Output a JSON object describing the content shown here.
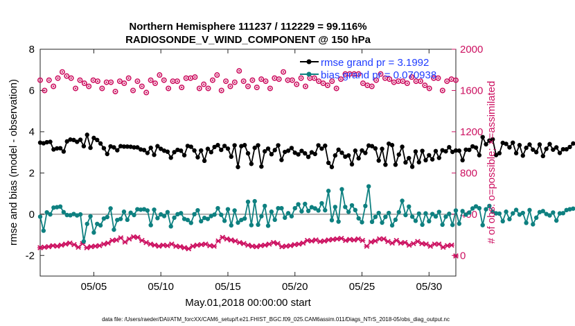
{
  "chart_data": {
    "type": "line",
    "title_line1": "Northern Hemisphere 111237 / 112229 = 99.116%",
    "title_line2": "RADIOSONDE_V_WIND_COMPONENT @ 150 hPa",
    "xlabel": "May.01,2018 00:00:00 start",
    "ylabel_left": "rmse and bias (model - observation)",
    "ylabel_right": "# of obs: o=possible; ×=assimilated",
    "ylim_left": [
      -3,
      8
    ],
    "ylim_right": [
      -200,
      2000
    ],
    "xlim_days": [
      1,
      32
    ],
    "yticks_left": [
      -2,
      0,
      2,
      4,
      6,
      8
    ],
    "yticks_right": [
      0,
      400,
      800,
      1200,
      1600,
      2000
    ],
    "xticks": [
      {
        "day": 5,
        "label": "05/05"
      },
      {
        "day": 10,
        "label": "05/10"
      },
      {
        "day": 15,
        "label": "05/15"
      },
      {
        "day": 20,
        "label": "05/20"
      },
      {
        "day": 25,
        "label": "05/25"
      },
      {
        "day": 30,
        "label": "05/30"
      }
    ],
    "zero_line": 0,
    "colors": {
      "rmse": "#000000",
      "bias": "#0e8080",
      "obs": "#cc1060",
      "zero_line": "#b0b0b0",
      "legend_text": "#1f3cff"
    },
    "legend": [
      {
        "name": "rmse",
        "label": "rmse grand pr = 3.1992"
      },
      {
        "name": "bias",
        "label": "bias grand pr = 0.070938"
      }
    ],
    "start_day": 1.0,
    "step_days": 0.25,
    "series": [
      {
        "name": "rmse",
        "axis": "left",
        "values": [
          3.47,
          3.44,
          3.49,
          3.51,
          3.14,
          3.19,
          3.2,
          3.04,
          3.53,
          3.62,
          3.6,
          3.51,
          3.61,
          3.3,
          3.85,
          3.22,
          3.7,
          3.6,
          3.43,
          3.2,
          2.92,
          3.29,
          3.24,
          3.1,
          3.3,
          3.28,
          3.28,
          3.27,
          3.24,
          3.24,
          3.14,
          3.11,
          2.97,
          3.22,
          2.88,
          3.3,
          3.17,
          3.08,
          3.03,
          2.74,
          3.01,
          3.12,
          3.08,
          2.86,
          3.31,
          3.27,
          3.09,
          2.76,
          3.09,
          2.59,
          3.17,
          3.01,
          3.26,
          3.35,
          3.12,
          3.31,
          3.18,
          2.79,
          3.34,
          2.29,
          3.3,
          3.35,
          2.95,
          2.44,
          3.22,
          3.34,
          2.31,
          3.05,
          3.18,
          2.91,
          3.11,
          3.34,
          2.63,
          3.02,
          3.08,
          3.21,
          2.98,
          2.9,
          3.07,
          2.95,
          2.78,
          3.0,
          2.92,
          3.34,
          3.18,
          3.32,
          2.49,
          2.29,
          2.85,
          3.13,
          2.98,
          2.79,
          2.85,
          2.42,
          3.08,
          2.71,
          3.09,
          2.97,
          3.33,
          3.3,
          3.19,
          2.6,
          3.17,
          2.4,
          3.42,
          3.35,
          2.4,
          2.89,
          3.27,
          2.51,
          2.72,
          2.3,
          3.04,
          2.52,
          3.07,
          2.62,
          2.86,
          2.66,
          3.06,
          2.73,
          3.1,
          3.05,
          3.25,
          3.02,
          3.09,
          3.08,
          2.62,
          3.13,
          3.12,
          3.29,
          3.23,
          2.86,
          3.74,
          3.39,
          3.57,
          3.63,
          2.87,
          2.96,
          3.46,
          3.41,
          3.24,
          3.47,
          2.96,
          3.35,
          2.84,
          3.22,
          3.38,
          3.13,
          3.01,
          3.38,
          2.82,
          3.17,
          3.4,
          3.13,
          3.24,
          2.97,
          3.15,
          3.15,
          3.26,
          3.43
        ]
      },
      {
        "name": "bias",
        "axis": "left",
        "values": [
          -0.12,
          -0.8,
          0.09,
          -0.01,
          0.32,
          0.34,
          0.37,
          0.1,
          -0.04,
          -0.05,
          0.01,
          -0.06,
          -0.01,
          -1.32,
          -0.47,
          -0.1,
          -0.89,
          -0.47,
          -0.54,
          -0.21,
          -0.14,
          0.28,
          -0.75,
          -0.28,
          -0.23,
          0.12,
          -0.27,
          0.07,
          -0.04,
          0.24,
          0.22,
          0.24,
          0.18,
          -0.53,
          0.22,
          -0.19,
          -0.01,
          -0.09,
          0.1,
          -0.59,
          -0.17,
          0.0,
          0.05,
          -0.23,
          -0.28,
          -0.42,
          0.0,
          0.19,
          -0.34,
          -0.18,
          -0.23,
          -0.09,
          -0.02,
          0.29,
          -0.03,
          -0.32,
          0.24,
          -0.54,
          0.18,
          -0.41,
          -0.28,
          -0.21,
          0.6,
          -0.53,
          0.63,
          -0.51,
          -0.1,
          0.4,
          -0.56,
          0.12,
          -0.27,
          0.29,
          0.29,
          -0.17,
          0.05,
          -0.1,
          0.29,
          0.48,
          0.14,
          0.5,
          0.16,
          0.34,
          0.28,
          0.18,
          0.53,
          0.19,
          1.13,
          -0.29,
          0.35,
          -0.36,
          1.21,
          0.35,
          0.11,
          0.43,
          0.2,
          -0.2,
          -0.39,
          0.4,
          1.35,
          -0.37,
          -0.13,
          0.06,
          -0.41,
          -0.13,
          0.06,
          -0.54,
          -0.27,
          0.1,
          0.65,
          -0.04,
          0.37,
          -0.12,
          -0.32,
          0.03,
          -0.51,
          0.04,
          -0.34,
          0.01,
          -0.11,
          0.11,
          -0.51,
          -0.12,
          0.02,
          -0.52,
          0.18,
          -0.46,
          0.15,
          -0.02,
          0.08,
          0.28,
          0.38,
          0.29,
          -0.53,
          0.24,
          0.4,
          0.12,
          0.04,
          0.03,
          -0.34,
          0.12,
          -0.24,
          0.04,
          0.21,
          -0.02,
          0.06,
          -0.42,
          0.2,
          -0.49,
          -0.17,
          0.1,
          0.15,
          0.01,
          -0.06,
          0.08,
          -0.31,
          0.04,
          0.05,
          0.2,
          0.24,
          0.27
        ]
      },
      {
        "name": "obs_possible",
        "axis": "right",
        "marker": "circle",
        "values": [
          1700,
          1600,
          1700,
          1640,
          1720,
          1780,
          1740,
          1720,
          1620,
          1700,
          1670,
          1640,
          1700,
          1690,
          1620,
          1680,
          1680,
          1590,
          1690,
          1670,
          1720,
          1600,
          1690,
          1640,
          1580,
          1700,
          1670,
          1750,
          1700,
          1620,
          1690,
          1690,
          1630,
          1720,
          1720,
          1730,
          1620,
          1660,
          1620,
          1700,
          1750,
          1600,
          1690,
          1640,
          1680,
          1790,
          1690,
          1640,
          1700,
          1630,
          1710,
          1690,
          1620,
          1720,
          1710,
          1780,
          1700,
          1700,
          1660,
          1720,
          1640,
          1720,
          1720,
          1690,
          1670,
          1650,
          1690,
          1620,
          1710,
          1760,
          1760,
          1760,
          1760,
          1670,
          1650,
          1640,
          1700,
          1760,
          1720,
          1710,
          1680,
          1690,
          1690,
          1670,
          1730,
          1690,
          1690,
          1650,
          1620,
          1720,
          1720,
          1600,
          1690,
          1710,
          1700
        ]
      },
      {
        "name": "obs_assimilated",
        "axis": "right",
        "marker": "x",
        "values": [
          75,
          80,
          85,
          95,
          90,
          100,
          110,
          120,
          105,
          80,
          115,
          75,
          85,
          90,
          95,
          110,
          120,
          145,
          150,
          170,
          130,
          160,
          180,
          175,
          145,
          125,
          110,
          100,
          90,
          100,
          95,
          110,
          90,
          85,
          75,
          65,
          90,
          100,
          105,
          110,
          95,
          90,
          140,
          175,
          160,
          150,
          140,
          125,
          115,
          100,
          90,
          85,
          95,
          100,
          110,
          125,
          115,
          85,
          90,
          95,
          105,
          110,
          120,
          145,
          140,
          150,
          135,
          140,
          150,
          155,
          160,
          165,
          145,
          155,
          150,
          160,
          145,
          90,
          130,
          140,
          160,
          160,
          135,
          120,
          145,
          120,
          125,
          100,
          115,
          135,
          115,
          110,
          90,
          110,
          110,
          80,
          95,
          100,
          -5
        ]
      }
    ],
    "footnote": "data file: /Users/raeder/DAI/ATM_forcXX/CAM6_setup/f.e21.FHIST_BGC.f09_025.CAM6assim.011/Diags_NTrS_2018-05/obs_diag_output.nc"
  }
}
